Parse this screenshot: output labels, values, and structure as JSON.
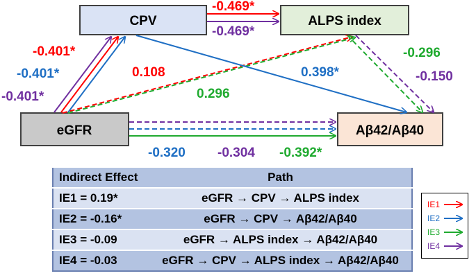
{
  "nodes": {
    "cpv": "CPV",
    "alps": "ALPS index",
    "egfr": "eGFR",
    "abeta": "Aβ42/Aβ40"
  },
  "colors": {
    "IE1": "#ff0000",
    "IE2": "#1f6fc4",
    "IE3": "#1faa2f",
    "IE4": "#7030a0"
  },
  "coefficients": {
    "cpv_alps_ie1": "-0.469*",
    "cpv_alps_ie4": "-0.469*",
    "egfr_cpv_ie1": "-0.401*",
    "egfr_cpv_ie2": "-0.401*",
    "egfr_cpv_ie4": "-0.401*",
    "egfr_alps_ie1": "0.108",
    "egfr_alps_ie3": "0.296",
    "cpv_abeta_ie2": "0.398*",
    "alps_abeta_ie3": "-0.296",
    "alps_abeta_ie4": "-0.150",
    "egfr_abeta_ie2": "-0.320",
    "egfr_abeta_ie4": "-0.304",
    "egfr_abeta_ie3": "-0.392*"
  },
  "table": {
    "header": {
      "effect": "Indirect Effect",
      "path": "Path"
    },
    "rows": [
      {
        "effect": "IE1 = 0.19*",
        "path": "eGFR → CPV → ALPS index"
      },
      {
        "effect": "IE2 = -0.16*",
        "path": "eGFR → CPV → Aβ42/Aβ40"
      },
      {
        "effect": "IE3 = -0.09",
        "path": "eGFR →  ALPS index → Aβ42/Aβ40"
      },
      {
        "effect": "IE4 = -0.03",
        "path": "eGFR → CPV → ALPS index → Aβ42/Aβ40"
      }
    ]
  },
  "legend": [
    "IE1",
    "IE2",
    "IE3",
    "IE4"
  ]
}
